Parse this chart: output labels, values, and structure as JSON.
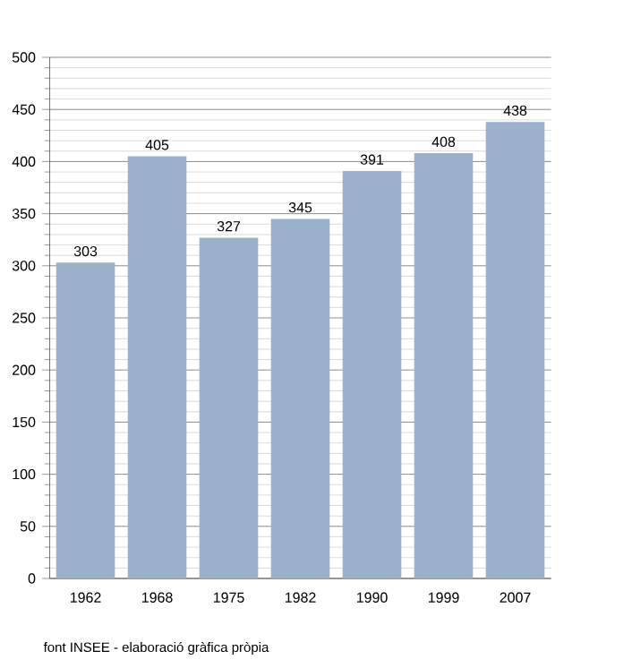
{
  "chart_data": {
    "type": "bar",
    "categories": [
      "1962",
      "1968",
      "1975",
      "1982",
      "1990",
      "1999",
      "2007"
    ],
    "values": [
      303,
      405,
      327,
      345,
      391,
      408,
      438
    ],
    "color": "#9ab1c9",
    "ylim": [
      0,
      500
    ],
    "yticks": [
      0,
      50,
      100,
      150,
      200,
      250,
      300,
      350,
      400,
      450,
      500
    ],
    "grid": "y",
    "data_labels": true,
    "annotations": [
      "font INSEE - elaboració gràfica pròpia"
    ]
  }
}
